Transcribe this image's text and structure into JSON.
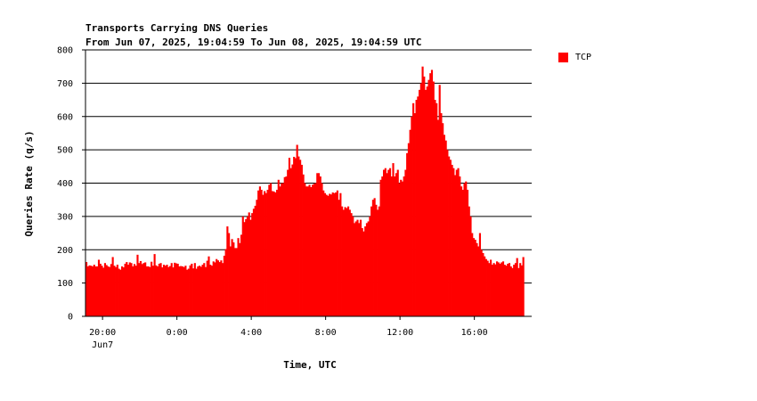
{
  "chart_data": {
    "type": "bar",
    "title": "Transports Carrying DNS Queries",
    "subtitle": "From Jun 07, 2025, 19:04:59 To Jun 08, 2025, 19:04:59 UTC",
    "xlabel": "Time, UTC",
    "ylabel": "Queries Rate (q/s)",
    "ylim": [
      0,
      800
    ],
    "yticks": [
      "0",
      "100",
      "200",
      "300",
      "400",
      "500",
      "600",
      "700",
      "800"
    ],
    "xlim_hours": [
      19.0833,
      43.0833
    ],
    "xticks": [
      {
        "hour": 20,
        "label": "20:00",
        "sublabel": "Jun7"
      },
      {
        "hour": 24,
        "label": "0:00",
        "sublabel": ""
      },
      {
        "hour": 28,
        "label": "4:00",
        "sublabel": ""
      },
      {
        "hour": 32,
        "label": "8:00",
        "sublabel": ""
      },
      {
        "hour": 36,
        "label": "12:00",
        "sublabel": ""
      },
      {
        "hour": 40,
        "label": "16:00",
        "sublabel": ""
      }
    ],
    "grid": true,
    "legend_position": "top-right",
    "series": [
      {
        "name": "TCP",
        "color": "#ff0000",
        "start_hour": 19.0833,
        "interval_minutes": 5,
        "values": [
          163,
          150,
          153,
          152,
          150,
          155,
          150,
          150,
          170,
          158,
          152,
          146,
          160,
          154,
          150,
          148,
          157,
          178,
          152,
          148,
          155,
          143,
          140,
          150,
          147,
          158,
          163,
          155,
          162,
          160,
          150,
          157,
          152,
          185,
          160,
          166,
          157,
          160,
          162,
          150,
          150,
          148,
          164,
          152,
          187,
          153,
          150,
          158,
          160,
          147,
          155,
          152,
          155,
          148,
          151,
          160,
          147,
          161,
          159,
          158,
          150,
          151,
          150,
          148,
          152,
          140,
          143,
          153,
          158,
          144,
          160,
          143,
          150,
          152,
          149,
          155,
          160,
          148,
          167,
          180,
          155,
          152,
          165,
          162,
          172,
          168,
          163,
          168,
          160,
          182,
          202,
          270,
          250,
          210,
          232,
          222,
          205,
          205,
          235,
          220,
          245,
          300,
          283,
          292,
          300,
          312,
          290,
          310,
          323,
          332,
          350,
          378,
          390,
          380,
          365,
          376,
          370,
          380,
          395,
          400,
          376,
          375,
          372,
          380,
          410,
          390,
          400,
          400,
          418,
          420,
          440,
          476,
          445,
          456,
          479,
          475,
          515,
          480,
          470,
          455,
          426,
          400,
          390,
          390,
          395,
          388,
          395,
          398,
          400,
          430,
          430,
          420,
          400,
          378,
          370,
          365,
          362,
          368,
          366,
          372,
          370,
          372,
          378,
          350,
          370,
          330,
          320,
          328,
          325,
          330,
          320,
          310,
          300,
          280,
          285,
          290,
          280,
          290,
          265,
          255,
          270,
          280,
          285,
          300,
          330,
          350,
          355,
          335,
          320,
          330,
          410,
          420,
          440,
          445,
          430,
          440,
          445,
          420,
          460,
          420,
          430,
          440,
          400,
          410,
          405,
          420,
          440,
          490,
          520,
          560,
          600,
          640,
          610,
          650,
          660,
          680,
          700,
          750,
          720,
          680,
          690,
          710,
          730,
          740,
          705,
          650,
          640,
          590,
          695,
          610,
          580,
          545,
          528,
          500,
          480,
          470,
          455,
          445,
          424,
          440,
          445,
          420,
          390,
          380,
          400,
          405,
          380,
          330,
          300,
          250,
          235,
          230,
          220,
          210,
          250,
          200,
          190,
          180,
          172,
          167,
          160,
          170,
          155,
          160,
          156,
          165,
          162,
          158,
          162,
          165,
          155,
          152,
          158,
          160,
          150,
          145,
          155,
          160,
          175,
          145,
          160,
          153,
          178
        ]
      }
    ]
  }
}
